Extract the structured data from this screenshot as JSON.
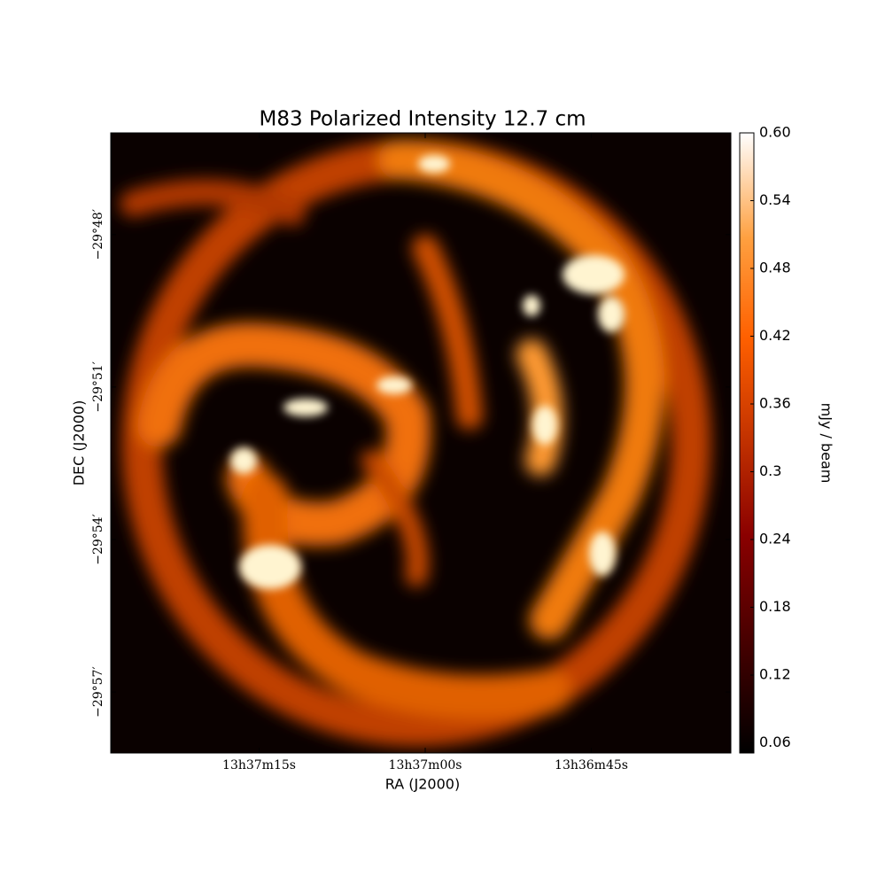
{
  "chart_data": {
    "type": "image",
    "title": "M83 Polarized Intensity 12.7 cm",
    "xlabel": "RA (J2000)",
    "ylabel": "DEC (J2000)",
    "colorbar_label": "mJy / beam",
    "cmap": "gist_heat",
    "xlim": [
      2248.4,
      2192.4
    ],
    "xticks": [
      {
        "value": 2235,
        "label": "13h37m15s"
      },
      {
        "value": 2220,
        "label": "13h37m00s"
      },
      {
        "value": 2205,
        "label": "13h36m45s"
      }
    ],
    "ylim": [
      -1798.2,
      -1786
    ],
    "yticks": [
      {
        "value": -1788,
        "label": "−29°48′"
      },
      {
        "value": -1791,
        "label": "−29°51′"
      },
      {
        "value": -1794,
        "label": "−29°54′"
      },
      {
        "value": -1797,
        "label": "−29°57′"
      }
    ],
    "clim": [
      0.051,
      0.6
    ],
    "cticks": [
      0.06,
      0.12,
      0.18,
      0.24,
      0.3,
      0.36,
      0.42,
      0.48,
      0.54,
      {
        "value": 0.6,
        "label": "0.60"
      }
    ]
  }
}
